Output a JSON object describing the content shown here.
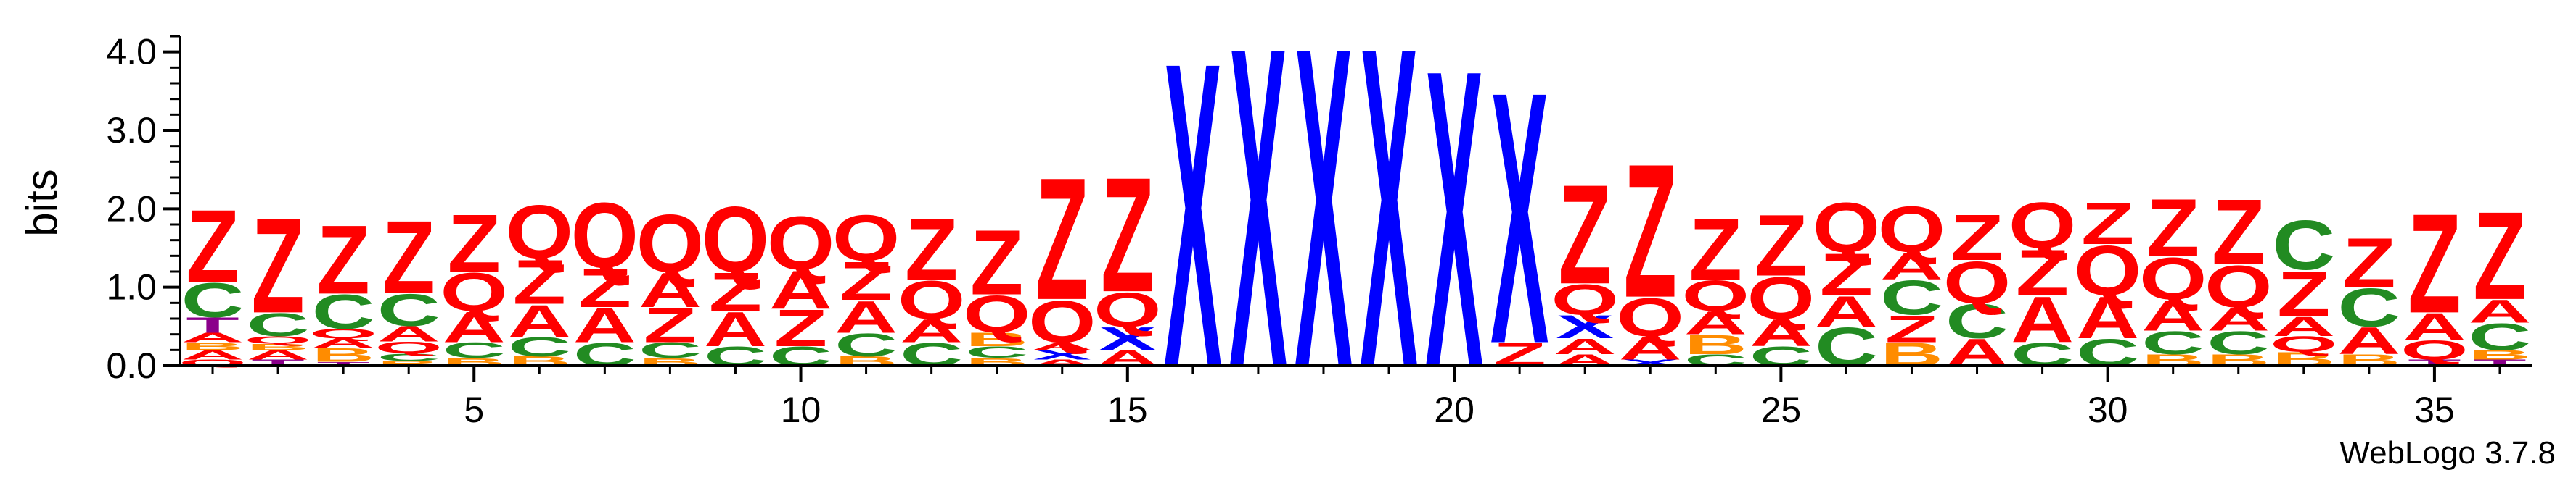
{
  "chart_data": {
    "type": "sequence-logo",
    "ylabel": "bits",
    "ylim": [
      0,
      4.2
    ],
    "y_ticks": [
      "0.0",
      "1.0",
      "2.0",
      "3.0",
      "4.0"
    ],
    "x_range": [
      1,
      36
    ],
    "x_ticks": [
      "5",
      "10",
      "15",
      "20",
      "25",
      "30",
      "35"
    ],
    "credit": "WebLogo 3.7.8",
    "colors": {
      "Z": "#ff0000",
      "Q": "#ff0000",
      "C": "#228b22",
      "A": "#ff0000",
      "B": "#ff8c00",
      "X": "#0000ff",
      "T": "#8b008b"
    },
    "stacks": [
      [
        [
          "Q",
          0.08
        ],
        [
          "A",
          0.12
        ],
        [
          "B",
          0.1
        ],
        [
          "A",
          0.12
        ],
        [
          "T",
          0.2
        ],
        [
          "C",
          0.45
        ],
        [
          "Z",
          0.95
        ]
      ],
      [
        [
          "T",
          0.08
        ],
        [
          "A",
          0.12
        ],
        [
          "B",
          0.08
        ],
        [
          "Q",
          0.1
        ],
        [
          "C",
          0.3
        ],
        [
          "Z",
          1.25
        ]
      ],
      [
        [
          "T",
          0.05
        ],
        [
          "B",
          0.18
        ],
        [
          "A",
          0.12
        ],
        [
          "Q",
          0.12
        ],
        [
          "C",
          0.45
        ],
        [
          "Z",
          0.9
        ]
      ],
      [
        [
          "B",
          0.06
        ],
        [
          "C",
          0.1
        ],
        [
          "Q",
          0.15
        ],
        [
          "A",
          0.2
        ],
        [
          "C",
          0.42
        ],
        [
          "Z",
          0.95
        ]
      ],
      [
        [
          "B",
          0.1
        ],
        [
          "C",
          0.2
        ],
        [
          "A",
          0.4
        ],
        [
          "Q",
          0.5
        ],
        [
          "Z",
          0.75
        ]
      ],
      [
        [
          "B",
          0.12
        ],
        [
          "C",
          0.25
        ],
        [
          "A",
          0.42
        ],
        [
          "Z",
          0.58
        ],
        [
          "Q",
          0.7
        ]
      ],
      [
        [
          "C",
          0.3
        ],
        [
          "A",
          0.45
        ],
        [
          "Z",
          0.5
        ],
        [
          "Q",
          0.85
        ]
      ],
      [
        [
          "B",
          0.1
        ],
        [
          "C",
          0.2
        ],
        [
          "Z",
          0.45
        ],
        [
          "A",
          0.45
        ],
        [
          "Q",
          0.75
        ]
      ],
      [
        [
          "C",
          0.25
        ],
        [
          "A",
          0.45
        ],
        [
          "Z",
          0.5
        ],
        [
          "Q",
          0.85
        ]
      ],
      [
        [
          "C",
          0.25
        ],
        [
          "Z",
          0.48
        ],
        [
          "A",
          0.5
        ],
        [
          "Q",
          0.7
        ]
      ],
      [
        [
          "B",
          0.12
        ],
        [
          "C",
          0.3
        ],
        [
          "A",
          0.42
        ],
        [
          "Z",
          0.5
        ],
        [
          "Q",
          0.6
        ]
      ],
      [
        [
          "C",
          0.3
        ],
        [
          "A",
          0.3
        ],
        [
          "Q",
          0.5
        ],
        [
          "Z",
          0.8
        ]
      ],
      [
        [
          "B",
          0.1
        ],
        [
          "C",
          0.15
        ],
        [
          "B",
          0.18
        ],
        [
          "Q",
          0.48
        ],
        [
          "Z",
          0.85
        ]
      ],
      [
        [
          "A",
          0.08
        ],
        [
          "X",
          0.12
        ],
        [
          "A",
          0.1
        ],
        [
          "Q",
          0.55
        ],
        [
          "Z",
          1.6
        ]
      ],
      [
        [
          "A",
          0.2
        ],
        [
          "X",
          0.3
        ],
        [
          "Q",
          0.45
        ],
        [
          "Z",
          1.5
        ]
      ],
      [
        [
          "X",
          4.0
        ]
      ],
      [
        [
          "X",
          4.2
        ]
      ],
      [
        [
          "X",
          4.2
        ]
      ],
      [
        [
          "X",
          4.2
        ]
      ],
      [
        [
          "X",
          3.9
        ]
      ],
      [
        [
          "Z",
          0.3
        ],
        [
          "X",
          3.3
        ]
      ],
      [
        [
          "A",
          0.15
        ],
        [
          "A",
          0.2
        ],
        [
          "X",
          0.3
        ],
        [
          "Q",
          0.4
        ],
        [
          "Z",
          1.3
        ]
      ],
      [
        [
          "X",
          0.08
        ],
        [
          "A",
          0.3
        ],
        [
          "Q",
          0.5
        ],
        [
          "Z",
          1.75
        ]
      ],
      [
        [
          "C",
          0.15
        ],
        [
          "B",
          0.25
        ],
        [
          "A",
          0.3
        ],
        [
          "Q",
          0.4
        ],
        [
          "Z",
          0.8
        ]
      ],
      [
        [
          "C",
          0.25
        ],
        [
          "A",
          0.35
        ],
        [
          "Q",
          0.55
        ],
        [
          "Z",
          0.8
        ]
      ],
      [
        [
          "C",
          0.5
        ],
        [
          "A",
          0.4
        ],
        [
          "Z",
          0.55
        ],
        [
          "Q",
          0.65
        ]
      ],
      [
        [
          "B",
          0.3
        ],
        [
          "Z",
          0.35
        ],
        [
          "C",
          0.45
        ],
        [
          "A",
          0.35
        ],
        [
          "Q",
          0.6
        ]
      ],
      [
        [
          "A",
          0.35
        ],
        [
          "C",
          0.45
        ],
        [
          "Q",
          0.55
        ],
        [
          "Z",
          0.6
        ]
      ],
      [
        [
          "C",
          0.3
        ],
        [
          "A",
          0.6
        ],
        [
          "Z",
          0.6
        ],
        [
          "Q",
          0.6
        ]
      ],
      [
        [
          "C",
          0.35
        ],
        [
          "A",
          0.55
        ],
        [
          "Q",
          0.65
        ],
        [
          "Z",
          0.55
        ]
      ],
      [
        [
          "B",
          0.15
        ],
        [
          "C",
          0.3
        ],
        [
          "A",
          0.4
        ],
        [
          "Q",
          0.55
        ],
        [
          "Z",
          0.75
        ]
      ],
      [
        [
          "B",
          0.15
        ],
        [
          "C",
          0.3
        ],
        [
          "A",
          0.3
        ],
        [
          "Q",
          0.55
        ],
        [
          "Z",
          0.85
        ]
      ],
      [
        [
          "B",
          0.18
        ],
        [
          "Q",
          0.2
        ],
        [
          "A",
          0.25
        ],
        [
          "Z",
          0.6
        ],
        [
          "C",
          0.65
        ]
      ],
      [
        [
          "B",
          0.15
        ],
        [
          "A",
          0.35
        ],
        [
          "C",
          0.5
        ],
        [
          "Z",
          0.65
        ]
      ],
      [
        [
          "T",
          0.08
        ],
        [
          "Q",
          0.25
        ],
        [
          "A",
          0.35
        ],
        [
          "Z",
          1.3
        ]
      ],
      [
        [
          "T",
          0.08
        ],
        [
          "B",
          0.12
        ],
        [
          "C",
          0.35
        ],
        [
          "A",
          0.3
        ],
        [
          "Z",
          1.15
        ]
      ]
    ]
  }
}
